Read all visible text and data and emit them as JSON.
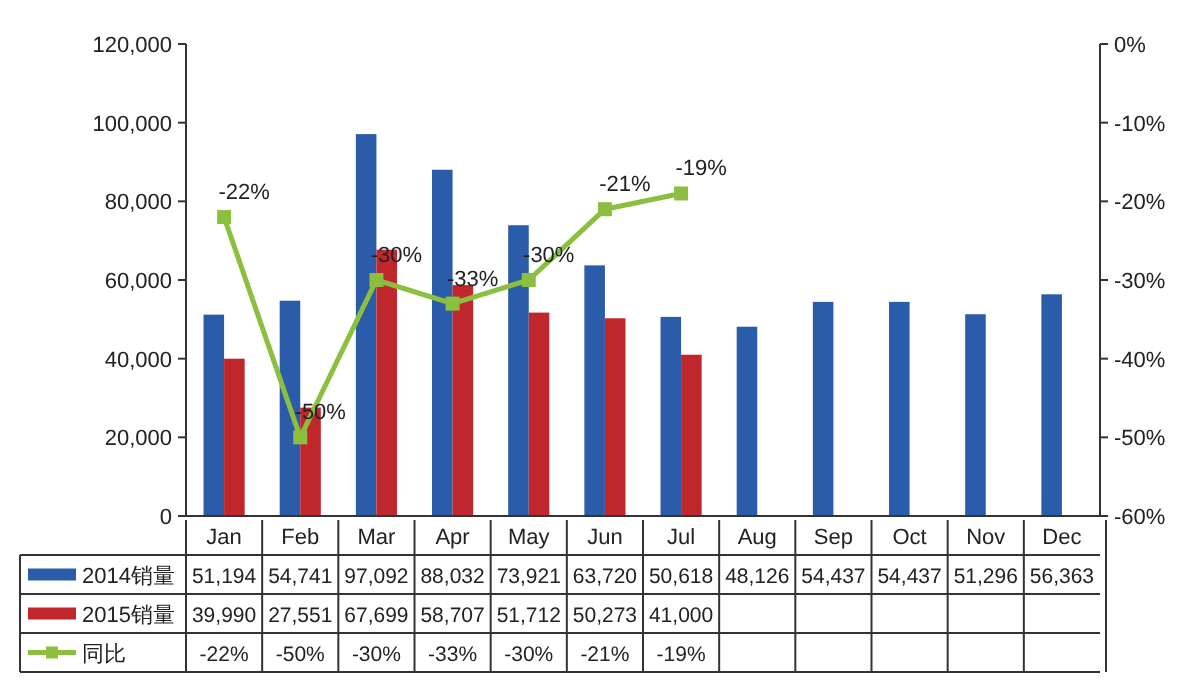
{
  "chart_data": {
    "type": "bar",
    "categories": [
      "Jan",
      "Feb",
      "Mar",
      "Apr",
      "May",
      "Jun",
      "Jul",
      "Aug",
      "Sep",
      "Oct",
      "Nov",
      "Dec"
    ],
    "series": [
      {
        "name": "2014销量",
        "color": "#2a5caa",
        "values": [
          51194,
          54741,
          97092,
          88032,
          73921,
          63720,
          50618,
          48126,
          54437,
          54437,
          51296,
          56363
        ],
        "value_labels": [
          "51,194",
          "54,741",
          "97,092",
          "88,032",
          "73,921",
          "63,720",
          "50,618",
          "48,126",
          "54,437",
          "54,437",
          "51,296",
          "56,363"
        ]
      },
      {
        "name": "2015销量",
        "color": "#c0272d",
        "values": [
          39990,
          27551,
          67699,
          58707,
          51712,
          50273,
          41000,
          null,
          null,
          null,
          null,
          null
        ],
        "value_labels": [
          "39,990",
          "27,551",
          "67,699",
          "58,707",
          "51,712",
          "50,273",
          "41,000",
          null,
          null,
          null,
          null,
          null
        ]
      },
      {
        "name": "同比",
        "type": "line",
        "axis": "y2",
        "color": "#8cbf3f",
        "marker": "square",
        "values": [
          -22,
          -50,
          -30,
          -33,
          -30,
          -21,
          -19,
          null,
          null,
          null,
          null,
          null
        ],
        "value_labels": [
          "-22%",
          "-50%",
          "-30%",
          "-33%",
          "-30%",
          "-21%",
          "-19%",
          null,
          null,
          null,
          null,
          null
        ]
      }
    ],
    "ylim": [
      0,
      120000
    ],
    "yticks": [
      {
        "value": 0,
        "label": "0"
      },
      {
        "value": 20000,
        "label": "20,000"
      },
      {
        "value": 40000,
        "label": "40,000"
      },
      {
        "value": 60000,
        "label": "60,000"
      },
      {
        "value": 80000,
        "label": "80,000"
      },
      {
        "value": 100000,
        "label": "100,000"
      },
      {
        "value": 120000,
        "label": "120,000"
      }
    ],
    "y2lim": [
      -60,
      0
    ],
    "y2ticks": [
      {
        "value": 0,
        "label": "0%"
      },
      {
        "value": -10,
        "label": "-10%"
      },
      {
        "value": -20,
        "label": "-20%"
      },
      {
        "value": -30,
        "label": "-30%"
      },
      {
        "value": -40,
        "label": "-40%"
      },
      {
        "value": -50,
        "label": "-50%"
      },
      {
        "value": -60,
        "label": "-60%"
      }
    ],
    "legend": "bottom"
  }
}
